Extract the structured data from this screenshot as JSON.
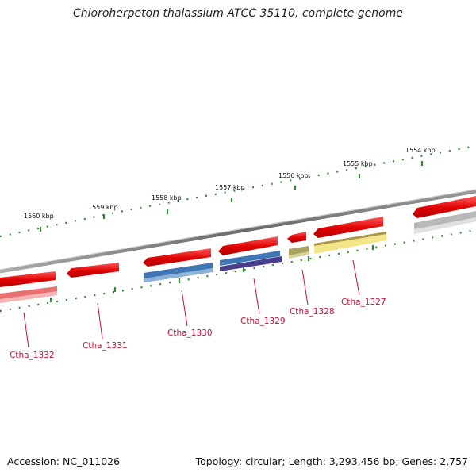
{
  "title": "Chloroherpeton thalassium ATCC 35110, complete genome",
  "footer": {
    "accession": "Accession: NC_011026",
    "summary": "Topology: circular; Length: 3,293,456 bp; Genes: 2,757"
  },
  "map": {
    "ticks": [
      "1560 kbp",
      "1559 kbp",
      "1558 kbp",
      "1557 kbp",
      "1556 kbp",
      "1555 kbp",
      "1554 kbp"
    ],
    "genes": [
      {
        "label": "Ctha_1332",
        "strand": "forward",
        "color": "#e87070"
      },
      {
        "label": "Ctha_1331",
        "strand": "reverse",
        "color": "#e21a1a"
      },
      {
        "label": "Ctha_1330",
        "strand": "forward",
        "color": "#3f77b4"
      },
      {
        "label": "Ctha_1329",
        "strand": "forward",
        "color": "#4a3f8f"
      },
      {
        "label": "Ctha_1328",
        "strand": "forward",
        "color": "#a8a25c"
      },
      {
        "label": "Ctha_1327",
        "strand": "forward",
        "color": "#f2e58a"
      }
    ],
    "label_color": "#c8102e",
    "tick_color": "#2e8b2e",
    "backbone_color": "#7a7a7a"
  }
}
